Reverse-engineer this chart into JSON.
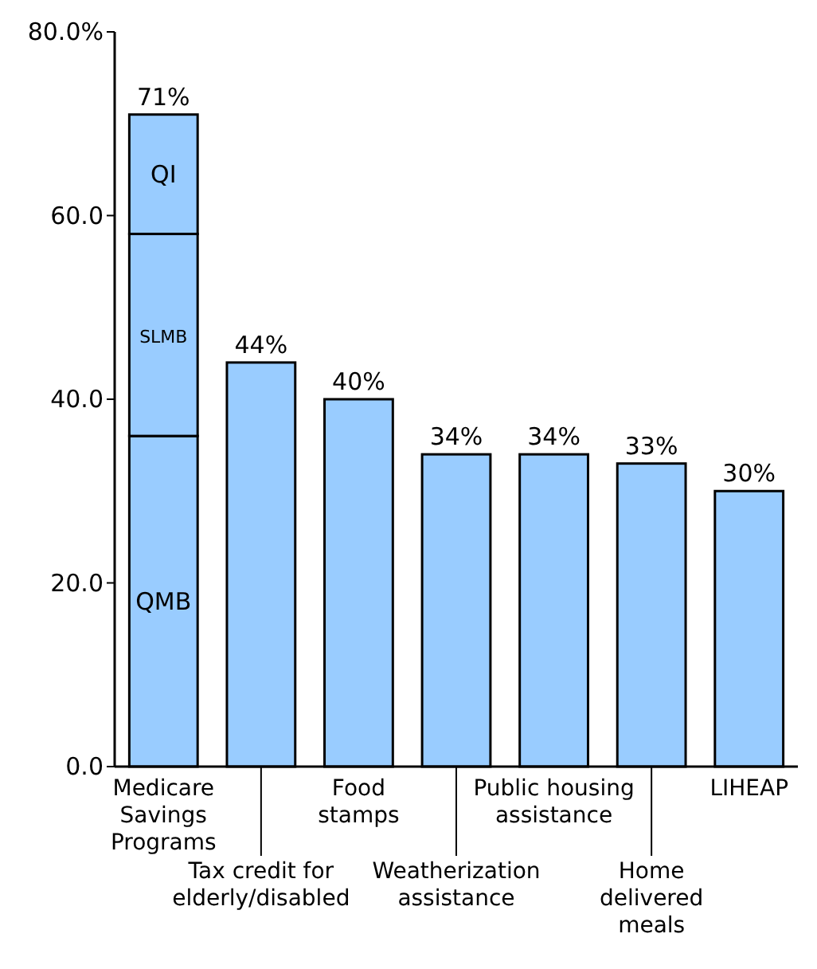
{
  "chart_data": {
    "type": "bar",
    "stacked": true,
    "categories": [
      "Medicare\nSavings\nPrograms",
      "Tax credit for\nelderly/disabled",
      "Food\nstamps",
      "Weatherization\nassistance",
      "Public housing\nassistance",
      "Home\ndelivered\nmeals",
      "LIHEAP"
    ],
    "series": [
      {
        "name": "QMB",
        "color": "#99ccff",
        "values": [
          36,
          null,
          null,
          null,
          null,
          null,
          null
        ]
      },
      {
        "name": "SLMB",
        "color": "#99ccff",
        "values": [
          22,
          null,
          null,
          null,
          null,
          null,
          null
        ]
      },
      {
        "name": "QI",
        "color": "#99ccff",
        "values": [
          13,
          null,
          null,
          null,
          null,
          null,
          null
        ]
      },
      {
        "color": "#99ccff",
        "values": [
          null,
          44,
          40,
          34,
          34,
          33,
          30
        ]
      }
    ],
    "totals": [
      "71%",
      "44%",
      "40%",
      "34%",
      "34%",
      "33%",
      "30%"
    ],
    "ylim": [
      0,
      80
    ],
    "yticks": [
      {
        "value": 0,
        "label": "0.0"
      },
      {
        "value": 20,
        "label": "20.0"
      },
      {
        "value": 40,
        "label": "40.0"
      },
      {
        "value": 60,
        "label": "60.0"
      },
      {
        "value": 80,
        "label": "80.0%"
      }
    ],
    "grid": false
  }
}
